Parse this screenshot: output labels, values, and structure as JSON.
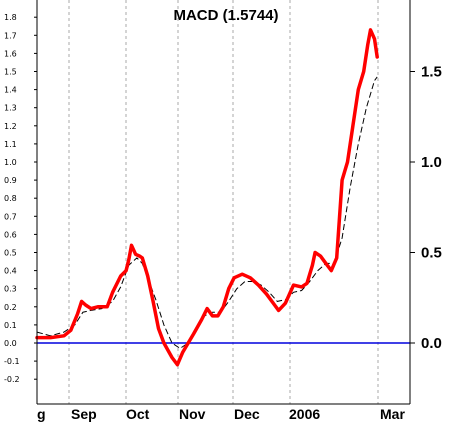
{
  "chart_data": {
    "type": "line",
    "title": "MACD (1.5744)",
    "ylim": [
      -0.28,
      1.85
    ],
    "left_ticks": [
      "1.8",
      "1.7",
      "1.6",
      "1.5",
      "1.4",
      "1.3",
      "1.2",
      "1.1",
      "1.0",
      "0.9",
      "0.8",
      "0.7",
      "0.6",
      "0.5",
      "0.4",
      "0.3",
      "0.2",
      "0.1",
      "0.0",
      "-0.1",
      "-0.2"
    ],
    "right_ticks": [
      "1.5",
      "1.0",
      "0.5",
      "0.0"
    ],
    "x_labels": [
      "g",
      "Sep",
      "Oct",
      "Nov",
      "Dec",
      "2006",
      "Mar"
    ],
    "grid": "vertical dashed at month boundaries",
    "colors": {
      "macd": "#ff0000",
      "signal": "#000000",
      "zero_line": "#0000dd",
      "grid": "#aaaaaa"
    },
    "series": [
      {
        "values": [
          [
            0,
            0.03
          ],
          [
            10,
            0.03
          ],
          [
            20,
            0.04
          ],
          [
            25,
            0.07
          ],
          [
            30,
            0.16
          ],
          [
            33,
            0.23
          ],
          [
            36,
            0.21
          ],
          [
            40,
            0.19
          ],
          [
            45,
            0.2
          ],
          [
            52,
            0.2
          ],
          [
            56,
            0.28
          ],
          [
            62,
            0.37
          ],
          [
            66,
            0.4
          ],
          [
            68,
            0.46
          ],
          [
            70,
            0.54
          ],
          [
            73,
            0.49
          ],
          [
            76,
            0.48
          ],
          [
            78,
            0.47
          ],
          [
            82,
            0.37
          ],
          [
            86,
            0.23
          ],
          [
            90,
            0.08
          ],
          [
            94,
            0.0
          ],
          [
            100,
            -0.08
          ],
          [
            104,
            -0.12
          ],
          [
            108,
            -0.05
          ],
          [
            112,
            0.0
          ],
          [
            116,
            0.05
          ],
          [
            122,
            0.13
          ],
          [
            126,
            0.19
          ],
          [
            130,
            0.15
          ],
          [
            134,
            0.15
          ],
          [
            138,
            0.2
          ],
          [
            142,
            0.3
          ],
          [
            146,
            0.36
          ],
          [
            152,
            0.38
          ],
          [
            158,
            0.36
          ],
          [
            164,
            0.32
          ],
          [
            170,
            0.27
          ],
          [
            176,
            0.21
          ],
          [
            179,
            0.18
          ],
          [
            184,
            0.22
          ],
          [
            190,
            0.32
          ],
          [
            196,
            0.31
          ],
          [
            200,
            0.33
          ],
          [
            204,
            0.43
          ],
          [
            206,
            0.5
          ],
          [
            210,
            0.48
          ],
          [
            214,
            0.44
          ],
          [
            218,
            0.4
          ],
          [
            222,
            0.47
          ],
          [
            226,
            0.9
          ],
          [
            230,
            1.0
          ],
          [
            234,
            1.2
          ],
          [
            238,
            1.4
          ],
          [
            242,
            1.5
          ],
          [
            245,
            1.65
          ],
          [
            247,
            1.73
          ],
          [
            250,
            1.68
          ],
          [
            252,
            1.58
          ]
        ]
      },
      {
        "values": [
          [
            0,
            0.06
          ],
          [
            10,
            0.04
          ],
          [
            20,
            0.06
          ],
          [
            28,
            0.1
          ],
          [
            34,
            0.17
          ],
          [
            40,
            0.18
          ],
          [
            48,
            0.19
          ],
          [
            56,
            0.23
          ],
          [
            62,
            0.31
          ],
          [
            68,
            0.43
          ],
          [
            74,
            0.47
          ],
          [
            78,
            0.44
          ],
          [
            82,
            0.36
          ],
          [
            88,
            0.24
          ],
          [
            94,
            0.1
          ],
          [
            100,
            0.0
          ],
          [
            106,
            -0.03
          ],
          [
            112,
            0.0
          ],
          [
            118,
            0.07
          ],
          [
            124,
            0.15
          ],
          [
            130,
            0.17
          ],
          [
            136,
            0.17
          ],
          [
            142,
            0.23
          ],
          [
            148,
            0.3
          ],
          [
            154,
            0.34
          ],
          [
            160,
            0.34
          ],
          [
            166,
            0.32
          ],
          [
            172,
            0.28
          ],
          [
            178,
            0.23
          ],
          [
            184,
            0.24
          ],
          [
            190,
            0.28
          ],
          [
            196,
            0.29
          ],
          [
            202,
            0.34
          ],
          [
            208,
            0.4
          ],
          [
            214,
            0.44
          ],
          [
            220,
            0.44
          ],
          [
            226,
            0.58
          ],
          [
            232,
            0.86
          ],
          [
            238,
            1.1
          ],
          [
            244,
            1.3
          ],
          [
            250,
            1.45
          ],
          [
            252,
            1.47
          ]
        ]
      }
    ]
  }
}
